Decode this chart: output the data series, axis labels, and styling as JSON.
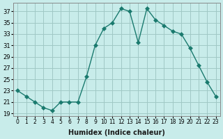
{
  "x": [
    0,
    1,
    2,
    3,
    4,
    5,
    6,
    7,
    8,
    9,
    10,
    11,
    12,
    13,
    14,
    15,
    16,
    17,
    18,
    19,
    20,
    21,
    22,
    23
  ],
  "y": [
    23,
    22,
    21,
    20,
    19.5,
    21,
    21,
    21,
    25.5,
    31,
    34,
    35,
    37.5,
    37,
    31.5,
    37.5,
    35.5,
    34.5,
    33.5,
    33,
    30.5,
    27.5,
    24.5,
    22
  ],
  "line_color": "#1a7a6e",
  "marker": "D",
  "marker_size": 3,
  "background_color": "#c8ecea",
  "grid_color": "#a0c8c5",
  "xlabel": "Humidex (Indice chaleur)",
  "ylabel": "",
  "title": "",
  "xlim": [
    -0.5,
    23.5
  ],
  "ylim": [
    18.5,
    38.5
  ],
  "yticks": [
    19,
    21,
    23,
    25,
    27,
    29,
    31,
    33,
    35,
    37
  ],
  "xtick_labels": [
    "0",
    "1",
    "2",
    "3",
    "4",
    "5",
    "6",
    "7",
    "8",
    "9",
    "10",
    "11",
    "12",
    "13",
    "14",
    "15",
    "16",
    "17",
    "18",
    "19",
    "20",
    "21",
    "22",
    "23"
  ]
}
